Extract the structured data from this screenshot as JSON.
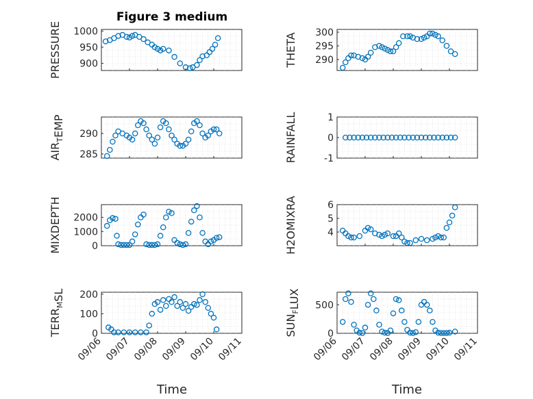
{
  "figure_title": "Figure 3 medium",
  "x_axis_label": "Time",
  "x_tick_labels": [
    "09/06",
    "09/07",
    "09/08",
    "09/09",
    "09/10",
    "09/11"
  ],
  "chart_data": [
    {
      "type": "scatter",
      "title": "Figure 3 medium",
      "ylabel": "PRESSURE",
      "ylim": [
        878,
        1005
      ],
      "yticks": [
        900,
        950,
        1000
      ],
      "xlim": [
        0,
        5
      ],
      "grid": true,
      "x": [
        0.15,
        0.3,
        0.45,
        0.6,
        0.75,
        0.9,
        1.0,
        1.1,
        1.2,
        1.35,
        1.5,
        1.65,
        1.8,
        1.9,
        2.0,
        2.1,
        2.2,
        2.4,
        2.6,
        2.8,
        3.0,
        3.15,
        3.25,
        3.4,
        3.5,
        3.6,
        3.75,
        3.85,
        3.95,
        4.05,
        4.15
      ],
      "y": [
        968,
        972,
        978,
        985,
        988,
        982,
        980,
        985,
        988,
        982,
        975,
        965,
        958,
        950,
        945,
        940,
        945,
        940,
        920,
        900,
        888,
        885,
        888,
        895,
        910,
        922,
        925,
        935,
        945,
        958,
        978
      ]
    },
    {
      "type": "scatter",
      "ylabel": "THETA",
      "ylim": [
        286,
        301
      ],
      "yticks": [
        290,
        295,
        300
      ],
      "xlim": [
        0,
        5
      ],
      "grid": true,
      "x": [
        0.2,
        0.3,
        0.4,
        0.5,
        0.6,
        0.75,
        0.9,
        1.0,
        1.1,
        1.2,
        1.35,
        1.5,
        1.6,
        1.7,
        1.8,
        1.9,
        2.0,
        2.1,
        2.2,
        2.35,
        2.5,
        2.6,
        2.7,
        2.85,
        3.0,
        3.1,
        3.2,
        3.3,
        3.4,
        3.5,
        3.6,
        3.75,
        3.9,
        4.05,
        4.2
      ],
      "y": [
        287,
        289,
        290.5,
        291.5,
        291.5,
        291,
        290.5,
        290,
        291,
        292.5,
        294.5,
        295,
        294.5,
        294,
        293.5,
        293,
        293,
        294.5,
        296,
        298.5,
        298.5,
        298.5,
        298,
        297.5,
        297.5,
        298,
        298.5,
        299.5,
        299.5,
        299,
        298.5,
        297,
        295,
        293,
        292
      ]
    },
    {
      "type": "scatter",
      "ylabel": "AIR_TEMP",
      "ylim": [
        284,
        294
      ],
      "yticks": [
        285,
        290
      ],
      "xlim": [
        0,
        5
      ],
      "grid": true,
      "x": [
        0.2,
        0.3,
        0.4,
        0.5,
        0.6,
        0.75,
        0.9,
        1.0,
        1.1,
        1.2,
        1.3,
        1.4,
        1.5,
        1.6,
        1.7,
        1.8,
        1.9,
        2.0,
        2.1,
        2.2,
        2.3,
        2.4,
        2.5,
        2.6,
        2.7,
        2.8,
        2.9,
        3.0,
        3.1,
        3.2,
        3.3,
        3.4,
        3.5,
        3.6,
        3.7,
        3.8,
        3.9,
        4.0,
        4.1,
        4.2
      ],
      "y": [
        284.5,
        286,
        288,
        289.5,
        290.5,
        290,
        289.5,
        289,
        288.5,
        290,
        292,
        293,
        292.5,
        291,
        289.5,
        288.5,
        287.5,
        289,
        291.5,
        293,
        292.5,
        291,
        289.5,
        288.5,
        287.5,
        287,
        287,
        287.5,
        288.5,
        290.5,
        292.5,
        293,
        292,
        290,
        289,
        289.5,
        290.5,
        291,
        291,
        290
      ]
    },
    {
      "type": "scatter",
      "ylabel": "RAINFALL",
      "ylim": [
        -1,
        1
      ],
      "yticks": [
        -1,
        0,
        1
      ],
      "xlim": [
        0,
        5
      ],
      "grid": true,
      "x": [
        0.3,
        0.45,
        0.6,
        0.75,
        0.9,
        1.05,
        1.2,
        1.35,
        1.5,
        1.65,
        1.8,
        1.95,
        2.1,
        2.25,
        2.4,
        2.55,
        2.7,
        2.85,
        3.0,
        3.15,
        3.3,
        3.45,
        3.6,
        3.75,
        3.9,
        4.05,
        4.2
      ],
      "y": [
        0,
        0,
        0,
        0,
        0,
        0,
        0,
        0,
        0,
        0,
        0,
        0,
        0,
        0,
        0,
        0,
        0,
        0,
        0,
        0,
        0,
        0,
        0,
        0,
        0,
        0,
        0
      ]
    },
    {
      "type": "scatter",
      "ylabel": "MIXDEPTH",
      "ylim": [
        0,
        2900
      ],
      "yticks": [
        0,
        1000,
        2000
      ],
      "xlim": [
        0,
        5
      ],
      "grid": true,
      "x": [
        0.2,
        0.3,
        0.4,
        0.5,
        0.55,
        0.6,
        0.7,
        0.8,
        0.9,
        1.0,
        1.1,
        1.2,
        1.3,
        1.4,
        1.5,
        1.6,
        1.7,
        1.8,
        1.9,
        2.0,
        2.1,
        2.2,
        2.3,
        2.4,
        2.5,
        2.6,
        2.7,
        2.8,
        2.9,
        3.0,
        3.1,
        3.2,
        3.3,
        3.4,
        3.5,
        3.6,
        3.7,
        3.8,
        3.9,
        4.0,
        4.1,
        4.2
      ],
      "y": [
        1400,
        1800,
        1950,
        1900,
        700,
        100,
        50,
        50,
        50,
        50,
        300,
        800,
        1500,
        2000,
        2200,
        100,
        50,
        50,
        50,
        100,
        700,
        1300,
        2000,
        2400,
        2300,
        400,
        200,
        100,
        50,
        100,
        900,
        1700,
        2500,
        2800,
        2000,
        900,
        300,
        100,
        300,
        400,
        550,
        600
      ]
    },
    {
      "type": "scatter",
      "ylabel": "H2OMIXRA",
      "ylim": [
        3,
        6
      ],
      "yticks": [
        4,
        5,
        6
      ],
      "xlim": [
        0,
        5
      ],
      "grid": true,
      "x": [
        0.2,
        0.3,
        0.4,
        0.5,
        0.6,
        0.8,
        1.0,
        1.1,
        1.2,
        1.35,
        1.5,
        1.6,
        1.7,
        1.8,
        2.0,
        2.1,
        2.2,
        2.3,
        2.4,
        2.5,
        2.6,
        2.8,
        3.0,
        3.2,
        3.4,
        3.5,
        3.6,
        3.7,
        3.8,
        3.9,
        4.0,
        4.1,
        4.2
      ],
      "y": [
        4.1,
        3.9,
        3.7,
        3.6,
        3.6,
        3.7,
        4.1,
        4.3,
        4.2,
        3.9,
        3.8,
        3.7,
        3.8,
        3.9,
        3.7,
        3.7,
        3.9,
        3.6,
        3.3,
        3.2,
        3.2,
        3.4,
        3.5,
        3.4,
        3.5,
        3.6,
        3.7,
        3.6,
        3.6,
        4.3,
        4.7,
        5.2,
        5.8
      ]
    },
    {
      "type": "scatter",
      "ylabel": "TERR_MSL",
      "ylim": [
        0,
        210
      ],
      "yticks": [
        0,
        100,
        200
      ],
      "xlim": [
        0,
        5
      ],
      "grid": true,
      "x": [
        0.25,
        0.35,
        0.45,
        0.6,
        0.8,
        1.0,
        1.2,
        1.4,
        1.6,
        1.7,
        1.8,
        1.9,
        2.0,
        2.1,
        2.2,
        2.3,
        2.4,
        2.5,
        2.6,
        2.7,
        2.8,
        2.9,
        3.0,
        3.1,
        3.2,
        3.3,
        3.4,
        3.5,
        3.6,
        3.7,
        3.8,
        3.9,
        4.0,
        4.1
      ],
      "y": [
        30,
        20,
        5,
        5,
        5,
        5,
        5,
        5,
        5,
        40,
        100,
        150,
        160,
        120,
        170,
        140,
        175,
        160,
        185,
        140,
        160,
        130,
        150,
        115,
        135,
        150,
        145,
        170,
        200,
        160,
        130,
        100,
        80,
        20
      ]
    },
    {
      "type": "scatter",
      "ylabel": "SUN_FLUX",
      "ylim": [
        0,
        720
      ],
      "yticks": [
        0,
        500
      ],
      "xlim": [
        0,
        5
      ],
      "grid": true,
      "x": [
        0.2,
        0.3,
        0.4,
        0.5,
        0.6,
        0.7,
        0.8,
        0.9,
        1.0,
        1.1,
        1.2,
        1.3,
        1.4,
        1.5,
        1.6,
        1.7,
        1.8,
        1.9,
        2.0,
        2.1,
        2.2,
        2.3,
        2.4,
        2.5,
        2.6,
        2.7,
        2.8,
        2.9,
        3.0,
        3.1,
        3.2,
        3.3,
        3.4,
        3.5,
        3.6,
        3.7,
        3.8,
        3.9,
        4.0,
        4.2
      ],
      "y": [
        200,
        600,
        700,
        550,
        150,
        50,
        10,
        5,
        100,
        500,
        700,
        600,
        400,
        150,
        30,
        10,
        5,
        50,
        350,
        600,
        580,
        400,
        200,
        60,
        10,
        5,
        20,
        200,
        500,
        550,
        500,
        400,
        200,
        50,
        10,
        5,
        5,
        5,
        10,
        30
      ]
    }
  ]
}
